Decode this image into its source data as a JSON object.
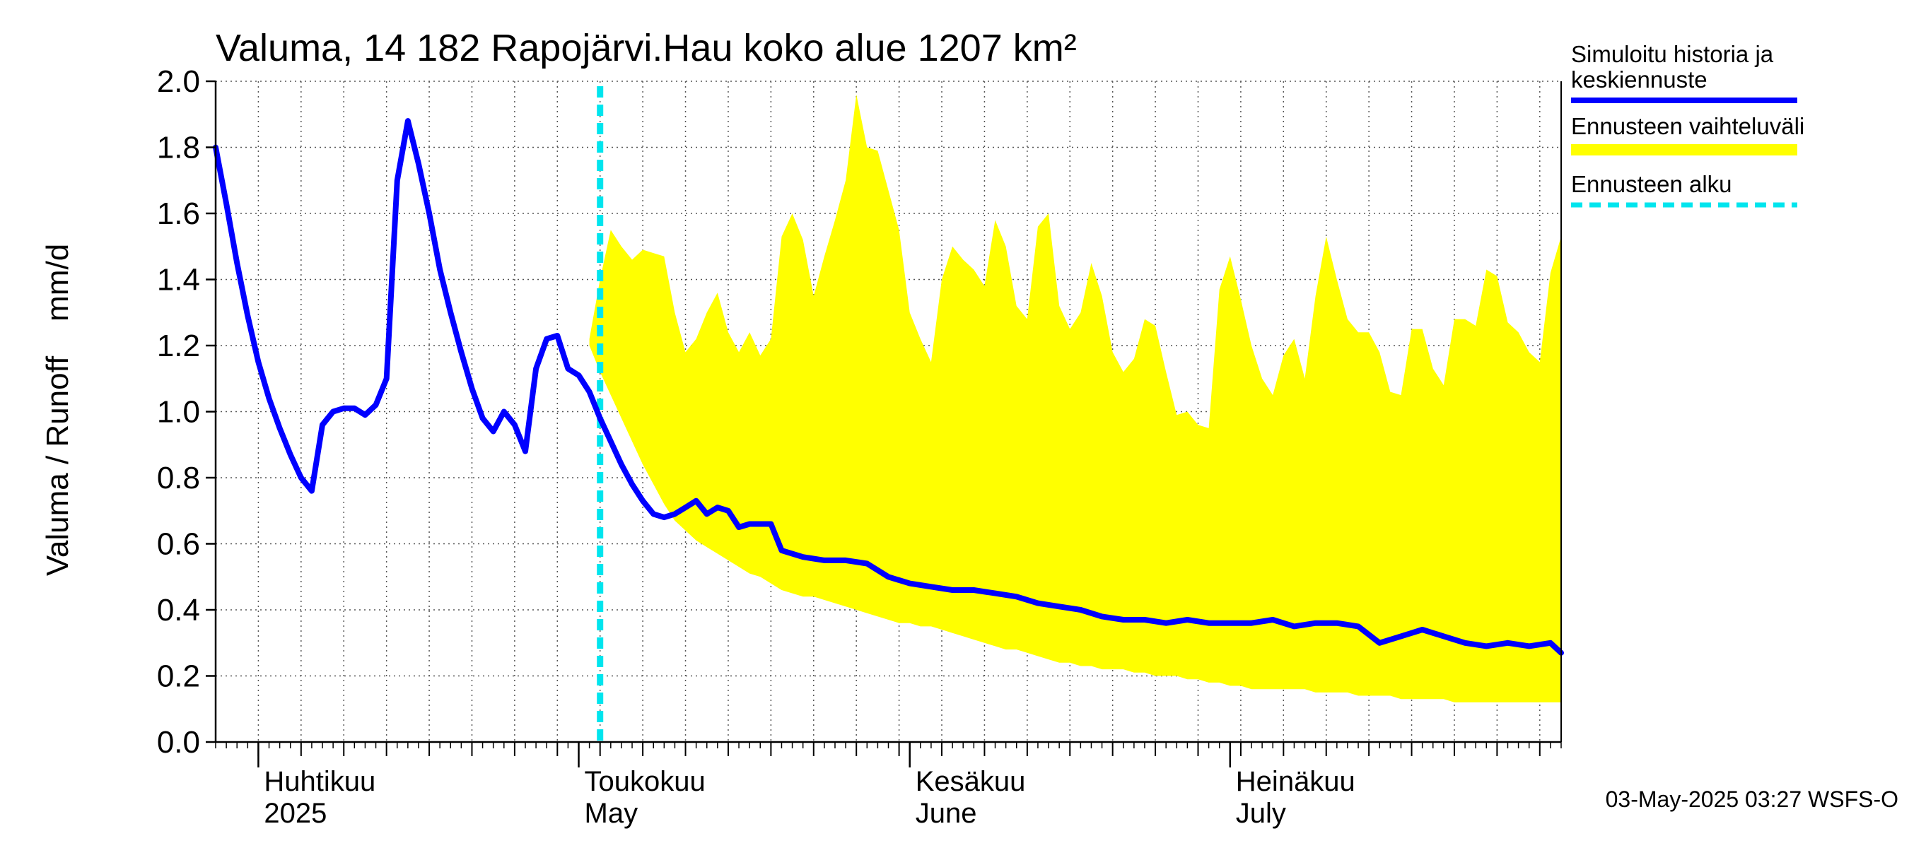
{
  "chart_data": {
    "type": "area",
    "title": "Valuma, 14 182 Rapojärvi.Hau koko alue 1207 km²",
    "ylabel": "Valuma / Runoff    mm/d",
    "xlabel": "",
    "ylim": [
      0.0,
      2.0
    ],
    "yticks": [
      "0.0",
      "0.2",
      "0.4",
      "0.6",
      "0.8",
      "1.0",
      "1.2",
      "1.4",
      "1.6",
      "1.8",
      "2.0"
    ],
    "grid": true,
    "x_axis": {
      "start_date": "2025-03-28",
      "end_date": "2025-08-01",
      "month_labels": [
        {
          "date": "2025-04-01",
          "fi": "Huhtikuu",
          "en": "2025"
        },
        {
          "date": "2025-05-01",
          "fi": "Toukokuu",
          "en": "May"
        },
        {
          "date": "2025-06-01",
          "fi": "Kesäkuu",
          "en": "June"
        },
        {
          "date": "2025-07-01",
          "fi": "Heinäkuu",
          "en": "July"
        }
      ]
    },
    "forecast_start": "2025-05-03",
    "series": [
      {
        "name": "Simuloitu historia ja keskiennuste",
        "type": "line",
        "color": "#0000ff",
        "dates": [
          "2025-03-28",
          "2025-03-29",
          "2025-03-30",
          "2025-03-31",
          "2025-04-01",
          "2025-04-02",
          "2025-04-03",
          "2025-04-04",
          "2025-04-05",
          "2025-04-06",
          "2025-04-07",
          "2025-04-08",
          "2025-04-09",
          "2025-04-10",
          "2025-04-11",
          "2025-04-12",
          "2025-04-13",
          "2025-04-14",
          "2025-04-15",
          "2025-04-16",
          "2025-04-17",
          "2025-04-18",
          "2025-04-19",
          "2025-04-20",
          "2025-04-21",
          "2025-04-22",
          "2025-04-23",
          "2025-04-24",
          "2025-04-25",
          "2025-04-26",
          "2025-04-27",
          "2025-04-28",
          "2025-04-29",
          "2025-04-30",
          "2025-05-01",
          "2025-05-02",
          "2025-05-03",
          "2025-05-04",
          "2025-05-05",
          "2025-05-06",
          "2025-05-07",
          "2025-05-08",
          "2025-05-09",
          "2025-05-10",
          "2025-05-11",
          "2025-05-12",
          "2025-05-13",
          "2025-05-14",
          "2025-05-15",
          "2025-05-16",
          "2025-05-17",
          "2025-05-18",
          "2025-05-19",
          "2025-05-20",
          "2025-05-22",
          "2025-05-24",
          "2025-05-26",
          "2025-05-28",
          "2025-05-30",
          "2025-06-01",
          "2025-06-03",
          "2025-06-05",
          "2025-06-07",
          "2025-06-09",
          "2025-06-11",
          "2025-06-13",
          "2025-06-15",
          "2025-06-17",
          "2025-06-19",
          "2025-06-21",
          "2025-06-23",
          "2025-06-25",
          "2025-06-27",
          "2025-06-29",
          "2025-07-01",
          "2025-07-03",
          "2025-07-05",
          "2025-07-07",
          "2025-07-09",
          "2025-07-11",
          "2025-07-13",
          "2025-07-15",
          "2025-07-17",
          "2025-07-19",
          "2025-07-21",
          "2025-07-23",
          "2025-07-25",
          "2025-07-27",
          "2025-07-29",
          "2025-07-31",
          "2025-08-01"
        ],
        "values": [
          1.8,
          1.63,
          1.45,
          1.29,
          1.15,
          1.04,
          0.95,
          0.87,
          0.8,
          0.76,
          0.96,
          1.0,
          1.01,
          1.01,
          0.99,
          1.02,
          1.1,
          1.7,
          1.88,
          1.75,
          1.6,
          1.43,
          1.3,
          1.18,
          1.07,
          0.98,
          0.94,
          1.0,
          0.96,
          0.88,
          1.13,
          1.22,
          1.23,
          1.13,
          1.11,
          1.06,
          0.98,
          0.91,
          0.84,
          0.78,
          0.73,
          0.69,
          0.68,
          0.69,
          0.71,
          0.73,
          0.69,
          0.71,
          0.7,
          0.65,
          0.66,
          0.66,
          0.66,
          0.58,
          0.56,
          0.55,
          0.55,
          0.54,
          0.5,
          0.48,
          0.47,
          0.46,
          0.46,
          0.45,
          0.44,
          0.42,
          0.41,
          0.4,
          0.38,
          0.37,
          0.37,
          0.36,
          0.37,
          0.36,
          0.36,
          0.36,
          0.37,
          0.35,
          0.36,
          0.36,
          0.35,
          0.3,
          0.32,
          0.34,
          0.32,
          0.3,
          0.29,
          0.3,
          0.29,
          0.3,
          0.27
        ]
      },
      {
        "name": "Ennusteen vaihteluväli",
        "type": "band",
        "color": "#ffff00",
        "dates": [
          "2025-05-02",
          "2025-05-03",
          "2025-05-04",
          "2025-05-05",
          "2025-05-06",
          "2025-05-07",
          "2025-05-08",
          "2025-05-09",
          "2025-05-10",
          "2025-05-11",
          "2025-05-12",
          "2025-05-13",
          "2025-05-14",
          "2025-05-15",
          "2025-05-16",
          "2025-05-17",
          "2025-05-18",
          "2025-05-19",
          "2025-05-20",
          "2025-05-21",
          "2025-05-22",
          "2025-05-23",
          "2025-05-24",
          "2025-05-25",
          "2025-05-26",
          "2025-05-27",
          "2025-05-28",
          "2025-05-29",
          "2025-05-30",
          "2025-05-31",
          "2025-06-01",
          "2025-06-02",
          "2025-06-03",
          "2025-06-04",
          "2025-06-05",
          "2025-06-06",
          "2025-06-07",
          "2025-06-08",
          "2025-06-09",
          "2025-06-10",
          "2025-06-11",
          "2025-06-12",
          "2025-06-13",
          "2025-06-14",
          "2025-06-15",
          "2025-06-16",
          "2025-06-17",
          "2025-06-18",
          "2025-06-19",
          "2025-06-20",
          "2025-06-21",
          "2025-06-22",
          "2025-06-23",
          "2025-06-24",
          "2025-06-25",
          "2025-06-26",
          "2025-06-27",
          "2025-06-28",
          "2025-06-29",
          "2025-06-30",
          "2025-07-01",
          "2025-07-02",
          "2025-07-03",
          "2025-07-04",
          "2025-07-05",
          "2025-07-06",
          "2025-07-07",
          "2025-07-08",
          "2025-07-09",
          "2025-07-10",
          "2025-07-11",
          "2025-07-12",
          "2025-07-13",
          "2025-07-14",
          "2025-07-15",
          "2025-07-16",
          "2025-07-17",
          "2025-07-18",
          "2025-07-19",
          "2025-07-20",
          "2025-07-21",
          "2025-07-22",
          "2025-07-23",
          "2025-07-24",
          "2025-07-25",
          "2025-07-26",
          "2025-07-27",
          "2025-07-28",
          "2025-07-29",
          "2025-07-30",
          "2025-07-31",
          "2025-08-01"
        ],
        "upper": [
          1.22,
          1.4,
          1.55,
          1.5,
          1.46,
          1.49,
          1.48,
          1.47,
          1.3,
          1.18,
          1.22,
          1.3,
          1.36,
          1.24,
          1.18,
          1.24,
          1.17,
          1.22,
          1.53,
          1.6,
          1.52,
          1.35,
          1.47,
          1.58,
          1.7,
          1.96,
          1.8,
          1.79,
          1.67,
          1.55,
          1.3,
          1.22,
          1.15,
          1.4,
          1.5,
          1.46,
          1.43,
          1.38,
          1.58,
          1.5,
          1.32,
          1.28,
          1.56,
          1.6,
          1.32,
          1.25,
          1.3,
          1.45,
          1.35,
          1.18,
          1.12,
          1.16,
          1.28,
          1.26,
          1.12,
          0.99,
          1.0,
          0.96,
          0.95,
          1.37,
          1.47,
          1.34,
          1.2,
          1.1,
          1.05,
          1.17,
          1.22,
          1.1,
          1.35,
          1.53,
          1.4,
          1.28,
          1.24,
          1.24,
          1.18,
          1.06,
          1.05,
          1.25,
          1.25,
          1.13,
          1.08,
          1.28,
          1.28,
          1.26,
          1.43,
          1.41,
          1.27,
          1.24,
          1.18,
          1.15,
          1.42,
          1.53
        ],
        "lower": [
          1.2,
          1.12,
          1.05,
          0.98,
          0.91,
          0.84,
          0.78,
          0.72,
          0.67,
          0.64,
          0.61,
          0.59,
          0.57,
          0.55,
          0.53,
          0.51,
          0.5,
          0.48,
          0.46,
          0.45,
          0.44,
          0.44,
          0.43,
          0.42,
          0.41,
          0.4,
          0.39,
          0.38,
          0.37,
          0.36,
          0.36,
          0.35,
          0.35,
          0.34,
          0.33,
          0.32,
          0.31,
          0.3,
          0.29,
          0.28,
          0.28,
          0.27,
          0.26,
          0.25,
          0.24,
          0.24,
          0.23,
          0.23,
          0.22,
          0.22,
          0.22,
          0.21,
          0.21,
          0.2,
          0.2,
          0.2,
          0.19,
          0.19,
          0.18,
          0.18,
          0.17,
          0.17,
          0.16,
          0.16,
          0.16,
          0.16,
          0.16,
          0.16,
          0.15,
          0.15,
          0.15,
          0.15,
          0.14,
          0.14,
          0.14,
          0.14,
          0.13,
          0.13,
          0.13,
          0.13,
          0.13,
          0.12,
          0.12,
          0.12,
          0.12,
          0.12,
          0.12,
          0.12,
          0.12,
          0.12,
          0.12,
          0.12
        ]
      }
    ],
    "legend": {
      "placement": "right",
      "items": [
        {
          "label_lines": [
            "Simuloitu historia ja",
            "keskiennuste"
          ],
          "style": "line",
          "color": "#0000ff"
        },
        {
          "label_lines": [
            "Ennusteen vaihteluväli"
          ],
          "style": "band",
          "color": "#ffff00"
        },
        {
          "label_lines": [
            "Ennusteen alku"
          ],
          "style": "dashed",
          "color": "#00e5ee"
        }
      ]
    },
    "footer": "03-May-2025 03:27 WSFS-O"
  }
}
